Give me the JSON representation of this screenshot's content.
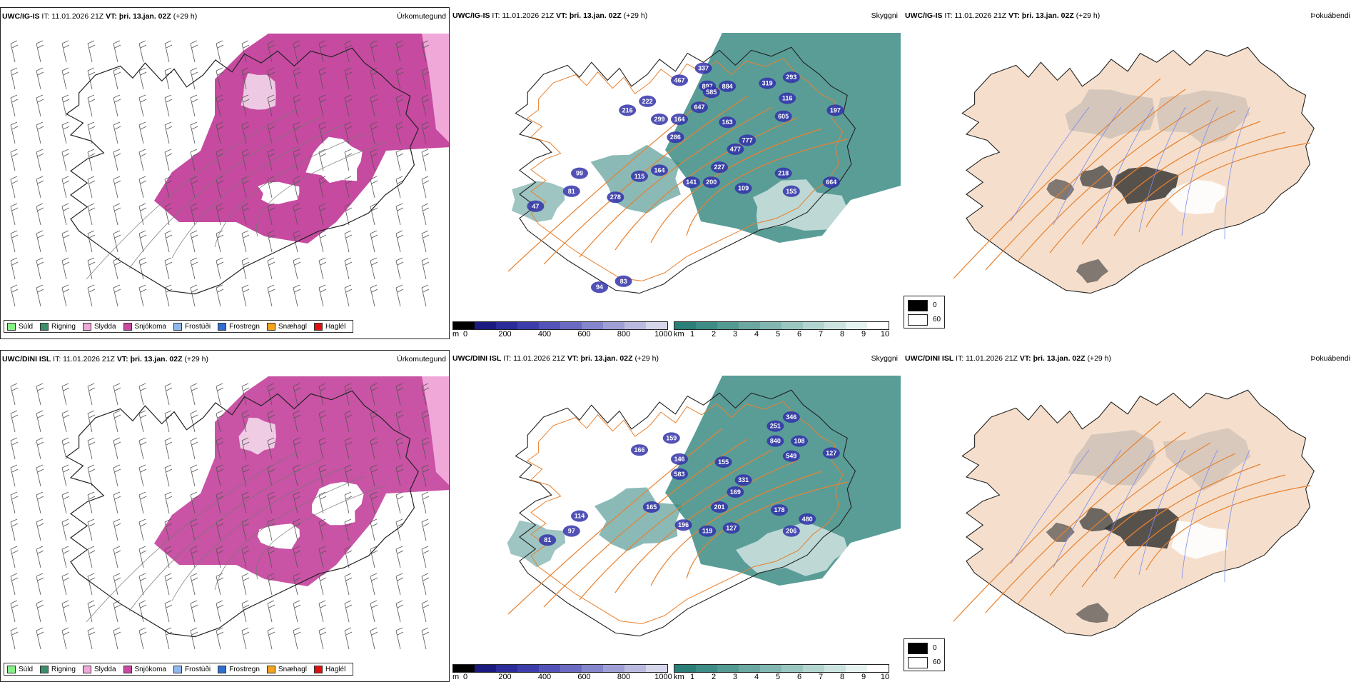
{
  "rows": [
    {
      "model": "UWC/IG-IS",
      "issue": "IT: 11.01.2026 21Z",
      "valid_prefix": "VT:",
      "valid": "þri. 13.jan. 02Z",
      "lead": "(+29 h)",
      "titles": [
        "Úrkomutegund",
        "Skyggni",
        "Þokuábendi"
      ],
      "labels": [
        [
          "467",
          0.5,
          0.22
        ],
        [
          "337",
          0.56,
          0.18
        ],
        [
          "897",
          0.57,
          0.24
        ],
        [
          "884",
          0.62,
          0.24
        ],
        [
          "319",
          0.72,
          0.23
        ],
        [
          "293",
          0.78,
          0.21
        ],
        [
          "585",
          0.58,
          0.26
        ],
        [
          "222",
          0.42,
          0.29
        ],
        [
          "647",
          0.55,
          0.31
        ],
        [
          "116",
          0.77,
          0.28
        ],
        [
          "197",
          0.89,
          0.32
        ],
        [
          "216",
          0.37,
          0.32
        ],
        [
          "605",
          0.76,
          0.34
        ],
        [
          "164",
          0.5,
          0.35
        ],
        [
          "299",
          0.45,
          0.35
        ],
        [
          "163",
          0.62,
          0.36
        ],
        [
          "286",
          0.49,
          0.41
        ],
        [
          "777",
          0.67,
          0.42
        ],
        [
          "477",
          0.64,
          0.45
        ],
        [
          "227",
          0.6,
          0.51
        ],
        [
          "218",
          0.76,
          0.53
        ],
        [
          "99",
          0.25,
          0.53
        ],
        [
          "115",
          0.4,
          0.54
        ],
        [
          "164",
          0.45,
          0.52
        ],
        [
          "141",
          0.53,
          0.56
        ],
        [
          "200",
          0.58,
          0.56
        ],
        [
          "109",
          0.66,
          0.58
        ],
        [
          "664",
          0.88,
          0.56
        ],
        [
          "155",
          0.78,
          0.59
        ],
        [
          "81",
          0.23,
          0.59
        ],
        [
          "278",
          0.34,
          0.61
        ],
        [
          "47",
          0.14,
          0.64
        ],
        [
          "94",
          0.3,
          0.91
        ],
        [
          "83",
          0.36,
          0.89
        ]
      ]
    },
    {
      "model": "UWC/DINI ISL",
      "issue": "IT: 11.01.2026 21Z",
      "valid_prefix": "VT:",
      "valid": "þri. 13.jan. 02Z",
      "lead": "(+29 h)",
      "titles": [
        "Úrkomutegund",
        "Skyggni",
        "Þokuábendi"
      ],
      "labels": [
        [
          "346",
          0.78,
          0.2
        ],
        [
          "251",
          0.74,
          0.23
        ],
        [
          "840",
          0.74,
          0.28
        ],
        [
          "108",
          0.8,
          0.28
        ],
        [
          "127",
          0.88,
          0.32
        ],
        [
          "549",
          0.78,
          0.33
        ],
        [
          "159",
          0.48,
          0.27
        ],
        [
          "166",
          0.4,
          0.31
        ],
        [
          "146",
          0.5,
          0.34
        ],
        [
          "155",
          0.61,
          0.35
        ],
        [
          "583",
          0.5,
          0.39
        ],
        [
          "331",
          0.66,
          0.41
        ],
        [
          "169",
          0.64,
          0.45
        ],
        [
          "201",
          0.6,
          0.5
        ],
        [
          "165",
          0.43,
          0.5
        ],
        [
          "178",
          0.75,
          0.51
        ],
        [
          "114",
          0.25,
          0.53
        ],
        [
          "480",
          0.82,
          0.54
        ],
        [
          "196",
          0.51,
          0.56
        ],
        [
          "119",
          0.57,
          0.58
        ],
        [
          "127",
          0.63,
          0.57
        ],
        [
          "206",
          0.78,
          0.58
        ],
        [
          "97",
          0.23,
          0.58
        ],
        [
          "81",
          0.17,
          0.61
        ]
      ]
    }
  ],
  "precip_legend": [
    {
      "label": "Súld",
      "color": "#88ee88"
    },
    {
      "label": "Rigning",
      "color": "#3a8f6a"
    },
    {
      "label": "Slydda",
      "color": "#f0a8d8"
    },
    {
      "label": "Snjókoma",
      "color": "#c64aa0"
    },
    {
      "label": "Frostúði",
      "color": "#8fb8ee"
    },
    {
      "label": "Frostregn",
      "color": "#2f6fcf"
    },
    {
      "label": "Snæhagl",
      "color": "#f3a31c"
    },
    {
      "label": "Haglél",
      "color": "#e01010"
    }
  ],
  "height_scale": {
    "unit": "m",
    "ticks": [
      "0",
      "200",
      "400",
      "600",
      "800",
      "1000"
    ],
    "colors": [
      "#000000",
      "#1a1a80",
      "#2b2b9a",
      "#3c3cab",
      "#5252b8",
      "#6a6ac2",
      "#8585cc",
      "#9f9fd6",
      "#babae0",
      "#d5d5ec"
    ]
  },
  "vis_scale": {
    "unit": "km",
    "ticks": [
      "1",
      "2",
      "3",
      "4",
      "5",
      "6",
      "7",
      "8",
      "9",
      "10"
    ],
    "colors": [
      "#2a7f78",
      "#3d8c85",
      "#539a93",
      "#6aa8a1",
      "#82b7b1",
      "#9ac6c0",
      "#b3d5d0",
      "#cce4e0",
      "#e5f2f0",
      "#ffffff"
    ]
  },
  "fog_scale": {
    "values": [
      "0",
      "60"
    ],
    "colors": [
      "#000000",
      "#ffffff"
    ]
  },
  "colors": {
    "snow": "#c64aa0",
    "sleet": "#f0a8d8",
    "visibility_fill": "#3d8c85",
    "land": "#f5dfcc",
    "roads": "#e8812f",
    "rivers": "#7a8cf0"
  }
}
